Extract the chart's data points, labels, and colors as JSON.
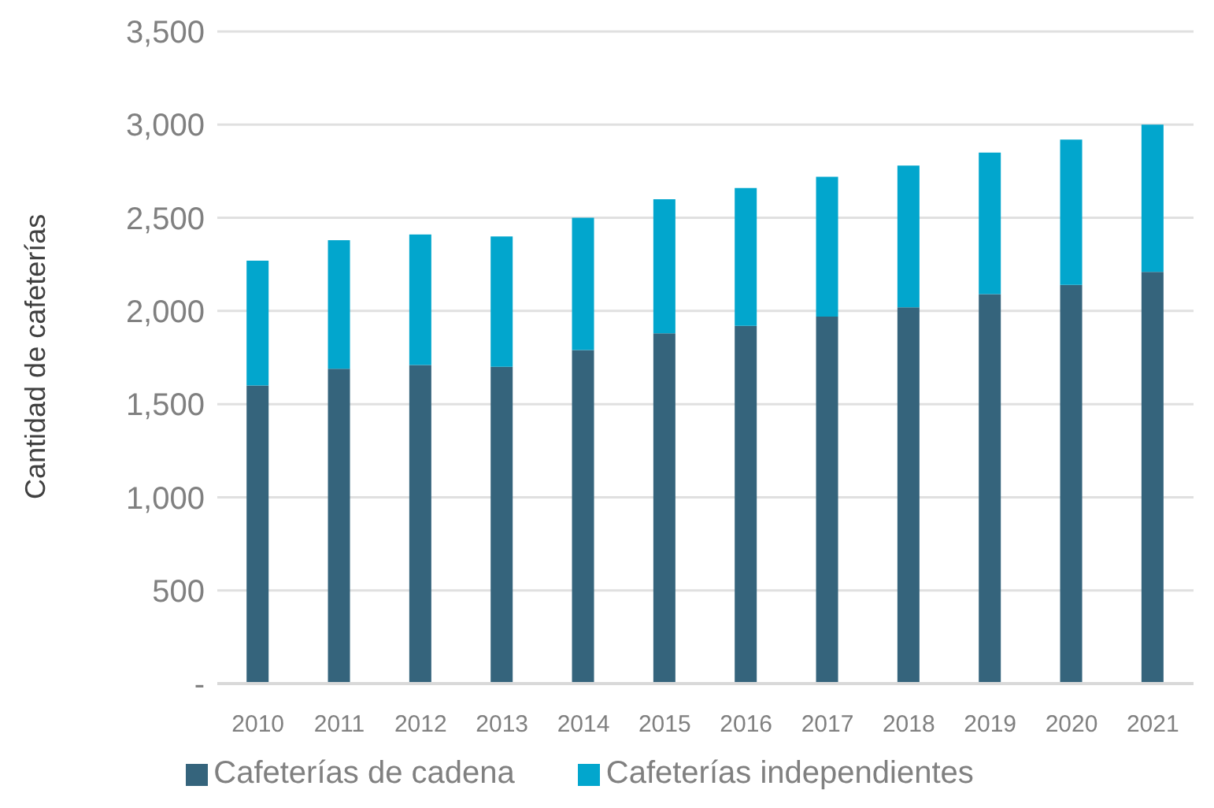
{
  "chart_data": {
    "type": "bar",
    "stacked": true,
    "ylabel": "Cantidad de cafeterías",
    "categories": [
      "2010",
      "2011",
      "2012",
      "2013",
      "2014",
      "2015",
      "2016",
      "2017",
      "2018",
      "2019",
      "2020",
      "2021"
    ],
    "series": [
      {
        "name": "Cafeterías de cadena",
        "color": "#35647c",
        "values": [
          1600,
          1690,
          1710,
          1700,
          1790,
          1880,
          1920,
          1970,
          2020,
          2090,
          2140,
          2210
        ]
      },
      {
        "name": "Cafeterías independientes",
        "color": "#02a6cd",
        "values": [
          670,
          690,
          700,
          700,
          710,
          720,
          740,
          750,
          760,
          760,
          780,
          790
        ]
      }
    ],
    "ylim": [
      0,
      3500
    ],
    "yticks": [
      {
        "value": 0,
        "label": "-"
      },
      500,
      {
        "value": 1000,
        "label": "1,000"
      },
      {
        "value": 1500,
        "label": "1,500"
      },
      {
        "value": 2000,
        "label": "2,000"
      },
      {
        "value": 2500,
        "label": "2,500"
      },
      {
        "value": 3000,
        "label": "3,000"
      },
      {
        "value": 3500,
        "label": "3,500"
      }
    ],
    "grid": "y",
    "legend": "bottom"
  }
}
